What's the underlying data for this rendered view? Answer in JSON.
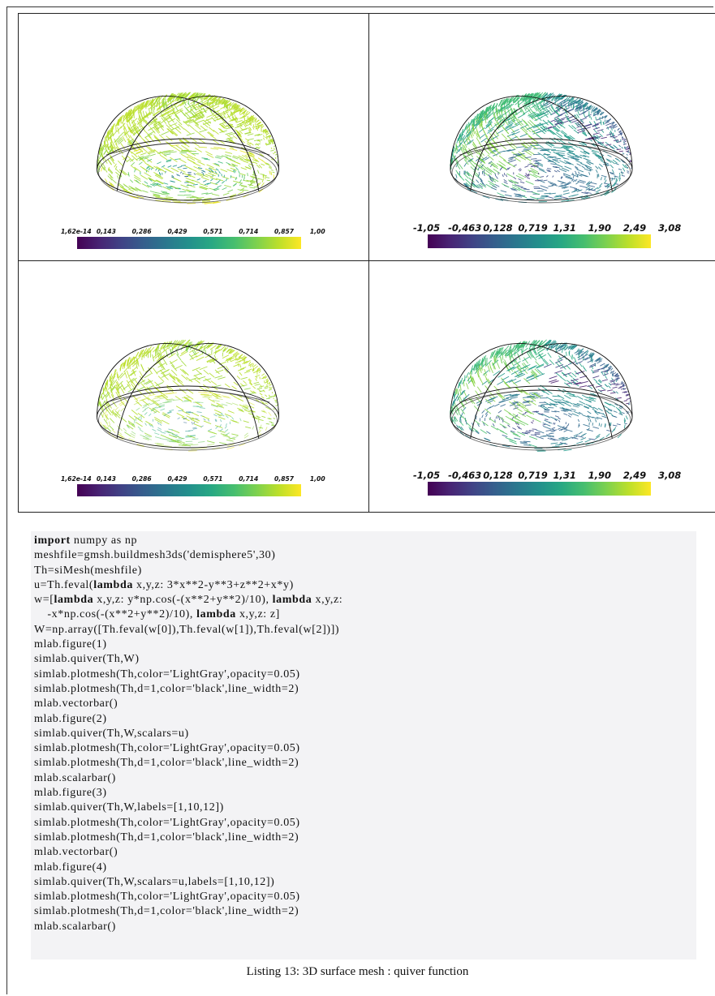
{
  "figures": [
    {
      "id": "fig1",
      "colorbar_labels": [
        "1,62e-14",
        "0,143",
        "0,286",
        "0,429",
        "0,571",
        "0,714",
        "0,857",
        "1,00"
      ]
    },
    {
      "id": "fig2",
      "colorbar_labels": [
        "-1,05",
        "-0,463",
        "0,128",
        "0,719",
        "1,31",
        "1,90",
        "2,49",
        "3,08"
      ]
    },
    {
      "id": "fig3",
      "colorbar_labels": [
        "1,62e-14",
        "0,143",
        "0,286",
        "0,429",
        "0,571",
        "0,714",
        "0,857",
        "1,00"
      ]
    },
    {
      "id": "fig4",
      "colorbar_labels": [
        "-1,05",
        "-0,463",
        "0,128",
        "0,719",
        "1,31",
        "1,90",
        "2,49",
        "3,08"
      ]
    }
  ],
  "code": {
    "lines": [
      [
        {
          "t": "import",
          "kw": true
        },
        {
          "t": " numpy as np"
        }
      ],
      [
        {
          "t": "meshfile=gmsh.buildmesh3ds('demisphere5',30)"
        }
      ],
      [
        {
          "t": "Th=siMesh(meshfile)"
        }
      ],
      [
        {
          "t": "u=Th.feval("
        },
        {
          "t": "lambda",
          "kw": true
        },
        {
          "t": " x,y,z: 3*x**2-y**3+z**2+x*y)"
        }
      ],
      [
        {
          "t": "w=["
        },
        {
          "t": "lambda",
          "kw": true
        },
        {
          "t": " x,y,z: y*np.cos(-(x**2+y**2)/10), "
        },
        {
          "t": "lambda",
          "kw": true
        },
        {
          "t": " x,y,z:"
        }
      ],
      [
        {
          "t": "    -x*np.cos(-(x**2+y**2)/10), "
        },
        {
          "t": "lambda",
          "kw": true
        },
        {
          "t": " x,y,z: z]"
        }
      ],
      [
        {
          "t": "W=np.array([Th.feval(w[0]),Th.feval(w[1]),Th.feval(w[2])])"
        }
      ],
      [
        {
          "t": "mlab.figure(1)"
        }
      ],
      [
        {
          "t": "simlab.quiver(Th,W)"
        }
      ],
      [
        {
          "t": "simlab.plotmesh(Th,color='LightGray',opacity=0.05)"
        }
      ],
      [
        {
          "t": "simlab.plotmesh(Th,d=1,color='black',line_width=2)"
        }
      ],
      [
        {
          "t": "mlab.vectorbar()"
        }
      ],
      [
        {
          "t": "mlab.figure(2)"
        }
      ],
      [
        {
          "t": "simlab.quiver(Th,W,scalars=u)"
        }
      ],
      [
        {
          "t": "simlab.plotmesh(Th,color='LightGray',opacity=0.05)"
        }
      ],
      [
        {
          "t": "simlab.plotmesh(Th,d=1,color='black',line_width=2)"
        }
      ],
      [
        {
          "t": "mlab.scalarbar()"
        }
      ],
      [
        {
          "t": "mlab.figure(3)"
        }
      ],
      [
        {
          "t": "simlab.quiver(Th,W,labels=[1,10,12])"
        }
      ],
      [
        {
          "t": "simlab.plotmesh(Th,color='LightGray',opacity=0.05)"
        }
      ],
      [
        {
          "t": "simlab.plotmesh(Th,d=1,color='black',line_width=2)"
        }
      ],
      [
        {
          "t": "mlab.vectorbar()"
        }
      ],
      [
        {
          "t": "mlab.figure(4)"
        }
      ],
      [
        {
          "t": "simlab.quiver(Th,W,scalars=u,labels=[1,10,12])"
        }
      ],
      [
        {
          "t": "simlab.plotmesh(Th,color='LightGray',opacity=0.05)"
        }
      ],
      [
        {
          "t": "simlab.plotmesh(Th,d=1,color='black',line_width=2)"
        }
      ],
      [
        {
          "t": "mlab.scalarbar()"
        }
      ]
    ]
  },
  "caption": "Listing 13: 3D surface mesh : quiver function"
}
